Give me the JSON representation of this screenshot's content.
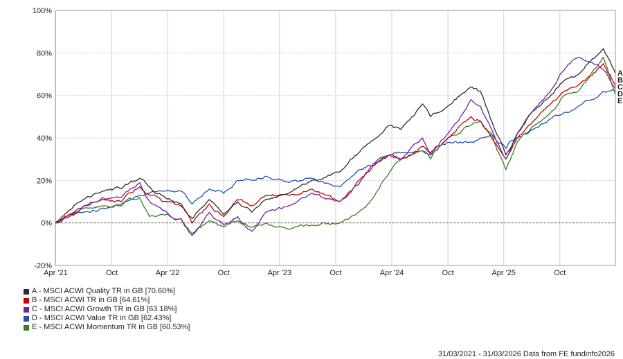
{
  "chart_data": {
    "type": "line",
    "y_axis": {
      "ticks": [
        "-20%",
        "0%",
        "20%",
        "40%",
        "60%",
        "80%",
        "100%"
      ],
      "tick_values": [
        -20,
        0,
        20,
        40,
        60,
        80,
        100
      ],
      "ylim": [
        -20,
        100
      ]
    },
    "x_axis": {
      "range": [
        "2021-03-31",
        "2026-03-31"
      ],
      "ticks": [
        {
          "label": "Apr '21",
          "date": "2021-04-01"
        },
        {
          "label": "Oct",
          "date": "2021-10-01"
        },
        {
          "label": "Apr '22",
          "date": "2022-04-01"
        },
        {
          "label": "Oct",
          "date": "2022-10-01"
        },
        {
          "label": "Apr '23",
          "date": "2023-04-01"
        },
        {
          "label": "Oct",
          "date": "2023-10-01"
        },
        {
          "label": "Apr '24",
          "date": "2024-04-01"
        },
        {
          "label": "Oct",
          "date": "2024-10-01"
        },
        {
          "label": "Apr '25",
          "date": "2025-04-01"
        },
        {
          "label": "Oct",
          "date": "2025-10-01"
        }
      ]
    },
    "grid": true,
    "legend_position": "bottom-left",
    "series": [
      {
        "letter": "A",
        "name": "A - MSCI ACWI Quality TR in GB [70.60%]",
        "color": "#2b2b2b",
        "points": [
          [
            "2021-03-31",
            0
          ],
          [
            "2021-05-15",
            6
          ],
          [
            "2021-07-01",
            11
          ],
          [
            "2021-09-01",
            15
          ],
          [
            "2021-11-01",
            16
          ],
          [
            "2021-12-31",
            21
          ],
          [
            "2022-02-01",
            17
          ],
          [
            "2022-03-15",
            13
          ],
          [
            "2022-05-15",
            9
          ],
          [
            "2022-06-20",
            2
          ],
          [
            "2022-08-15",
            11
          ],
          [
            "2022-10-01",
            4
          ],
          [
            "2022-11-15",
            10
          ],
          [
            "2023-01-01",
            5
          ],
          [
            "2023-02-15",
            11
          ],
          [
            "2023-05-01",
            14
          ],
          [
            "2023-07-15",
            20
          ],
          [
            "2023-10-15",
            24
          ],
          [
            "2023-12-15",
            33
          ],
          [
            "2024-02-01",
            39
          ],
          [
            "2024-03-25",
            46
          ],
          [
            "2024-05-01",
            44
          ],
          [
            "2024-07-10",
            56
          ],
          [
            "2024-08-05",
            50
          ],
          [
            "2024-10-01",
            55
          ],
          [
            "2024-12-15",
            64
          ],
          [
            "2025-01-15",
            62
          ],
          [
            "2025-02-20",
            48
          ],
          [
            "2025-04-08",
            32
          ],
          [
            "2025-05-15",
            42
          ],
          [
            "2025-07-01",
            52
          ],
          [
            "2025-09-01",
            60
          ],
          [
            "2025-10-15",
            67
          ],
          [
            "2025-12-01",
            70
          ],
          [
            "2026-02-20",
            82
          ],
          [
            "2026-03-31",
            70.6
          ]
        ]
      },
      {
        "letter": "B",
        "name": "B - MSCI ACWI TR in GB [64.61%]",
        "color": "#c00000",
        "points": [
          [
            "2021-03-31",
            0
          ],
          [
            "2021-05-15",
            4
          ],
          [
            "2021-07-01",
            8
          ],
          [
            "2021-09-01",
            11
          ],
          [
            "2021-11-01",
            10
          ],
          [
            "2021-12-31",
            17
          ],
          [
            "2022-02-01",
            13
          ],
          [
            "2022-03-15",
            10
          ],
          [
            "2022-05-15",
            8
          ],
          [
            "2022-06-20",
            0
          ],
          [
            "2022-08-15",
            9
          ],
          [
            "2022-10-01",
            3
          ],
          [
            "2022-11-15",
            11
          ],
          [
            "2023-01-01",
            8
          ],
          [
            "2023-02-15",
            13
          ],
          [
            "2023-05-01",
            13
          ],
          [
            "2023-07-15",
            16
          ],
          [
            "2023-10-15",
            10
          ],
          [
            "2023-12-15",
            20
          ],
          [
            "2024-02-01",
            27
          ],
          [
            "2024-03-25",
            32
          ],
          [
            "2024-05-01",
            30
          ],
          [
            "2024-07-10",
            36
          ],
          [
            "2024-08-05",
            33
          ],
          [
            "2024-10-01",
            40
          ],
          [
            "2024-12-15",
            50
          ],
          [
            "2025-01-15",
            48
          ],
          [
            "2025-02-20",
            40
          ],
          [
            "2025-04-08",
            30
          ],
          [
            "2025-05-15",
            40
          ],
          [
            "2025-07-01",
            47
          ],
          [
            "2025-09-01",
            56
          ],
          [
            "2025-10-15",
            62
          ],
          [
            "2025-12-01",
            65
          ],
          [
            "2026-02-20",
            75
          ],
          [
            "2026-03-31",
            64.6
          ]
        ]
      },
      {
        "letter": "C",
        "name": "C - MSCI ACWI Growth TR in GB [63.18%]",
        "color": "#7020a0",
        "points": [
          [
            "2021-03-31",
            0
          ],
          [
            "2021-05-15",
            3
          ],
          [
            "2021-07-01",
            8
          ],
          [
            "2021-09-01",
            12
          ],
          [
            "2021-11-01",
            12
          ],
          [
            "2021-12-31",
            19
          ],
          [
            "2022-02-01",
            10
          ],
          [
            "2022-03-15",
            6
          ],
          [
            "2022-05-15",
            2
          ],
          [
            "2022-06-20",
            -6
          ],
          [
            "2022-08-15",
            5
          ],
          [
            "2022-10-01",
            -1
          ],
          [
            "2022-11-15",
            3
          ],
          [
            "2023-01-01",
            -4
          ],
          [
            "2023-02-15",
            5
          ],
          [
            "2023-05-01",
            8
          ],
          [
            "2023-07-15",
            14
          ],
          [
            "2023-10-15",
            10
          ],
          [
            "2023-12-15",
            18
          ],
          [
            "2024-02-01",
            28
          ],
          [
            "2024-03-25",
            32
          ],
          [
            "2024-05-01",
            30
          ],
          [
            "2024-07-10",
            40
          ],
          [
            "2024-08-05",
            32
          ],
          [
            "2024-10-01",
            42
          ],
          [
            "2024-12-15",
            58
          ],
          [
            "2025-01-15",
            55
          ],
          [
            "2025-02-20",
            44
          ],
          [
            "2025-04-08",
            30
          ],
          [
            "2025-05-15",
            42
          ],
          [
            "2025-07-01",
            52
          ],
          [
            "2025-09-01",
            62
          ],
          [
            "2025-10-15",
            72
          ],
          [
            "2025-12-01",
            78
          ],
          [
            "2026-02-20",
            72
          ],
          [
            "2026-03-31",
            63.2
          ]
        ]
      },
      {
        "letter": "D",
        "name": "D - MSCI ACWI Value TR in GB [62.43%]",
        "color": "#2050b0",
        "points": [
          [
            "2021-03-31",
            0
          ],
          [
            "2021-05-15",
            4
          ],
          [
            "2021-07-01",
            5
          ],
          [
            "2021-09-01",
            7
          ],
          [
            "2021-11-01",
            8
          ],
          [
            "2021-12-31",
            13
          ],
          [
            "2022-02-01",
            14
          ],
          [
            "2022-03-15",
            15
          ],
          [
            "2022-05-15",
            15
          ],
          [
            "2022-06-20",
            9
          ],
          [
            "2022-08-15",
            16
          ],
          [
            "2022-10-01",
            14
          ],
          [
            "2022-11-15",
            20
          ],
          [
            "2023-01-01",
            20
          ],
          [
            "2023-02-15",
            22
          ],
          [
            "2023-05-01",
            19
          ],
          [
            "2023-07-15",
            21
          ],
          [
            "2023-10-15",
            17
          ],
          [
            "2023-12-15",
            25
          ],
          [
            "2024-02-01",
            27
          ],
          [
            "2024-03-25",
            32
          ],
          [
            "2024-05-01",
            33
          ],
          [
            "2024-07-10",
            34
          ],
          [
            "2024-08-05",
            32
          ],
          [
            "2024-10-01",
            38
          ],
          [
            "2024-12-15",
            38
          ],
          [
            "2025-01-15",
            40
          ],
          [
            "2025-02-20",
            42
          ],
          [
            "2025-04-08",
            35
          ],
          [
            "2025-05-15",
            40
          ],
          [
            "2025-07-01",
            44
          ],
          [
            "2025-09-01",
            49
          ],
          [
            "2025-10-15",
            52
          ],
          [
            "2025-12-01",
            55
          ],
          [
            "2026-02-20",
            62
          ],
          [
            "2026-03-31",
            62.4
          ]
        ]
      },
      {
        "letter": "E",
        "name": "E - MSCI ACWI Momentum TR in GB [60.53%]",
        "color": "#3a7d1e",
        "points": [
          [
            "2021-03-31",
            0
          ],
          [
            "2021-05-15",
            3
          ],
          [
            "2021-07-01",
            7
          ],
          [
            "2021-09-01",
            8
          ],
          [
            "2021-11-01",
            9
          ],
          [
            "2021-12-31",
            12
          ],
          [
            "2022-02-01",
            3
          ],
          [
            "2022-03-15",
            4
          ],
          [
            "2022-05-15",
            2
          ],
          [
            "2022-06-20",
            -5
          ],
          [
            "2022-08-15",
            1
          ],
          [
            "2022-10-01",
            -2
          ],
          [
            "2022-11-15",
            1
          ],
          [
            "2023-01-01",
            -2
          ],
          [
            "2023-02-15",
            0
          ],
          [
            "2023-05-01",
            -3
          ],
          [
            "2023-07-15",
            -1
          ],
          [
            "2023-10-15",
            0
          ],
          [
            "2023-12-15",
            5
          ],
          [
            "2024-02-01",
            12
          ],
          [
            "2024-03-25",
            24
          ],
          [
            "2024-05-01",
            30
          ],
          [
            "2024-07-10",
            34
          ],
          [
            "2024-08-05",
            30
          ],
          [
            "2024-10-01",
            40
          ],
          [
            "2024-12-15",
            46
          ],
          [
            "2025-01-15",
            48
          ],
          [
            "2025-02-20",
            42
          ],
          [
            "2025-04-08",
            25
          ],
          [
            "2025-05-15",
            38
          ],
          [
            "2025-07-01",
            45
          ],
          [
            "2025-09-01",
            52
          ],
          [
            "2025-10-15",
            60
          ],
          [
            "2025-12-01",
            62
          ],
          [
            "2026-02-20",
            78
          ],
          [
            "2026-03-31",
            60.5
          ]
        ]
      }
    ],
    "zero_line": true
  },
  "footer": {
    "range": "31/03/2021 - 31/03/2026",
    "source": "Data from FE fundinfo2026"
  }
}
